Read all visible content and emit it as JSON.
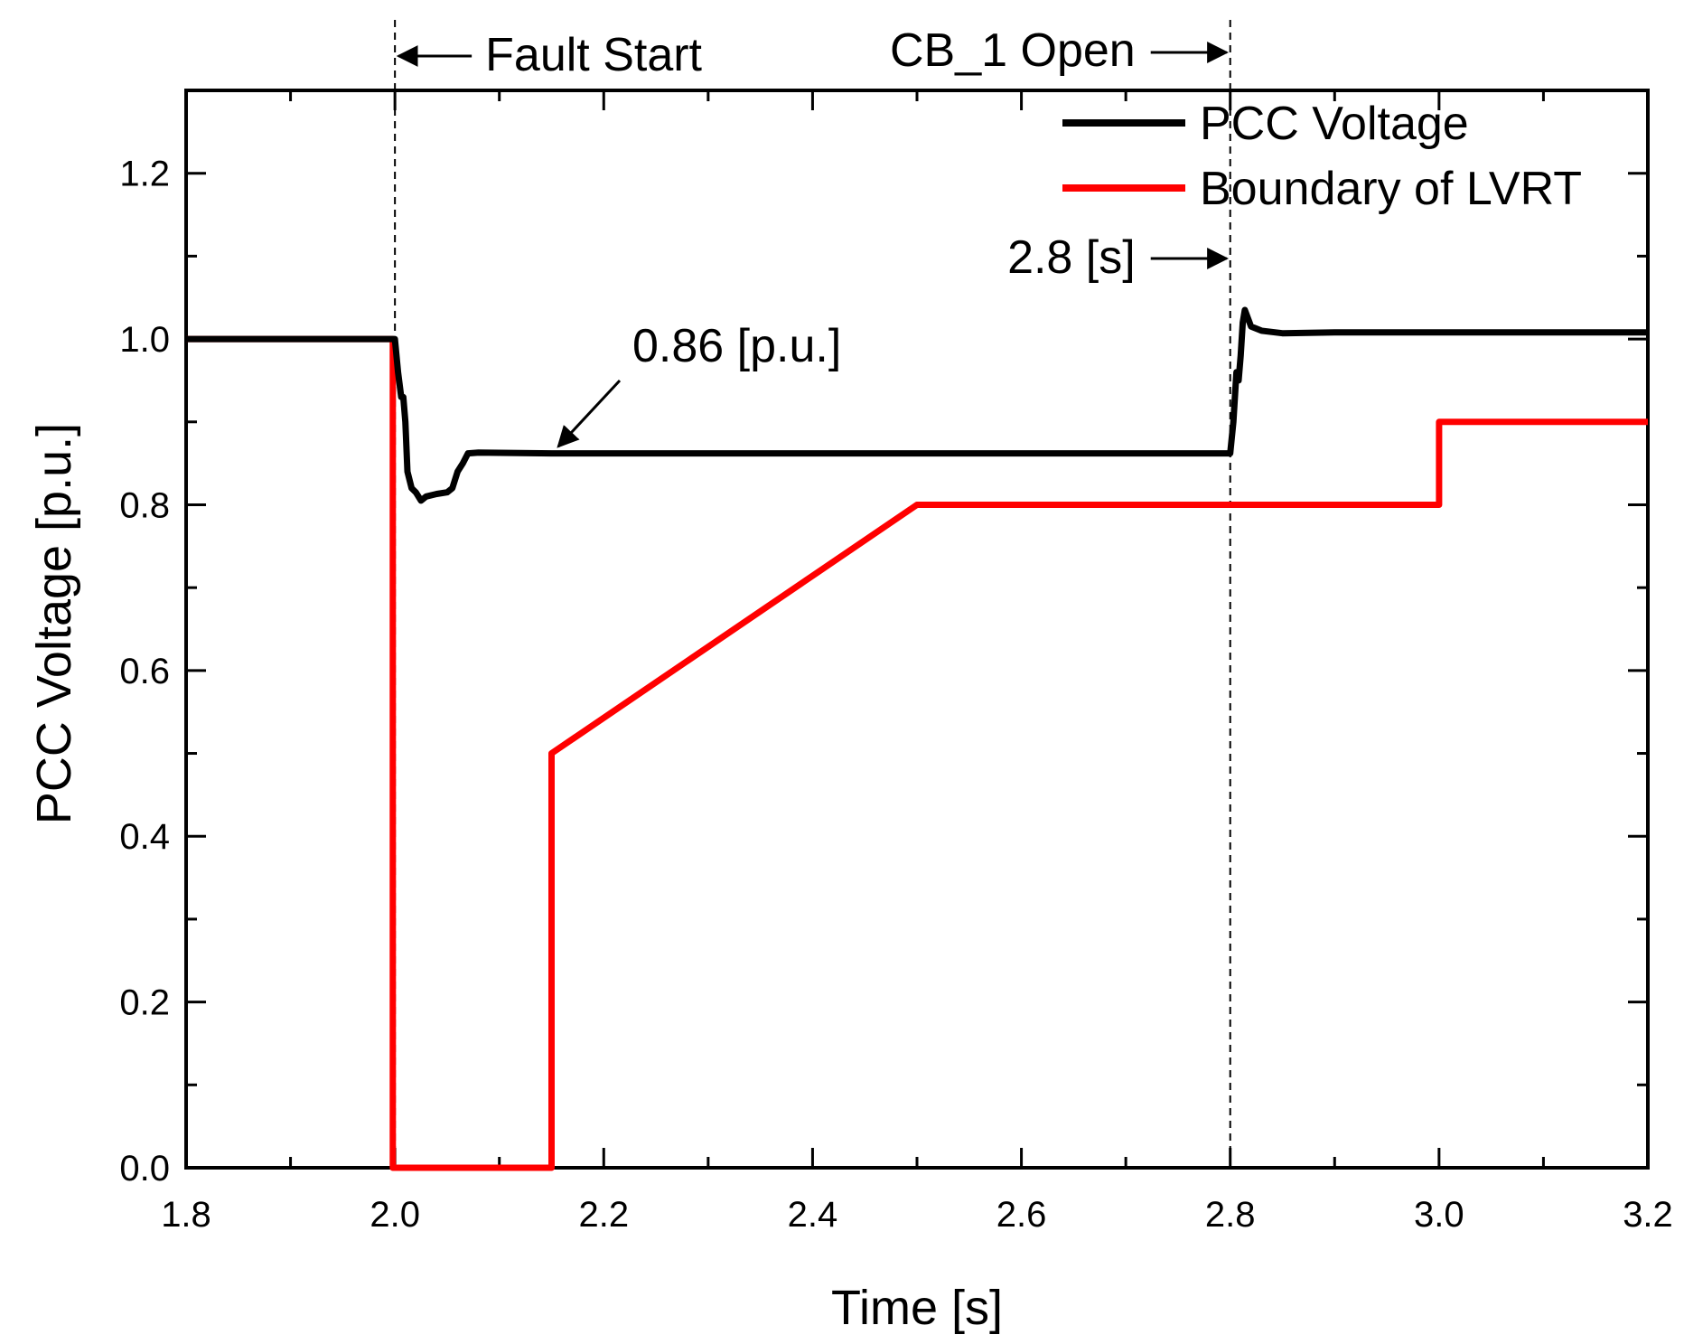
{
  "chart_data": {
    "type": "line",
    "title": "",
    "xlabel": "Time [s]",
    "ylabel": "PCC Voltage [p.u.]",
    "xlim": [
      1.8,
      3.2
    ],
    "ylim": [
      0.0,
      1.3
    ],
    "xticks": [
      1.8,
      2.0,
      2.2,
      2.4,
      2.6,
      2.8,
      3.0,
      3.2
    ],
    "xtick_labels": [
      "1.8",
      "2.0",
      "2.2",
      "2.4",
      "2.6",
      "2.8",
      "3.0",
      "3.2"
    ],
    "yticks": [
      0.0,
      0.2,
      0.4,
      0.6,
      0.8,
      1.0,
      1.2
    ],
    "ytick_labels": [
      "0.0",
      "0.2",
      "0.4",
      "0.6",
      "0.8",
      "1.0",
      "1.2"
    ],
    "grid": false,
    "legend_position": "top-right",
    "series": [
      {
        "name": "PCC Voltage",
        "color": "#000000",
        "x": [
          1.8,
          2.0,
          2.003,
          2.006,
          2.008,
          2.01,
          2.012,
          2.016,
          2.02,
          2.025,
          2.03,
          2.04,
          2.05,
          2.055,
          2.06,
          2.065,
          2.07,
          2.08,
          2.15,
          2.3,
          2.6,
          2.8,
          2.803,
          2.806,
          2.808,
          2.81,
          2.812,
          2.814,
          2.82,
          2.83,
          2.85,
          2.9,
          3.2
        ],
        "y": [
          1.0,
          1.0,
          0.96,
          0.93,
          0.93,
          0.9,
          0.84,
          0.82,
          0.815,
          0.805,
          0.81,
          0.813,
          0.815,
          0.82,
          0.84,
          0.85,
          0.862,
          0.863,
          0.862,
          0.862,
          0.862,
          0.862,
          0.9,
          0.96,
          0.95,
          0.98,
          1.02,
          1.035,
          1.015,
          1.01,
          1.007,
          1.008,
          1.008
        ]
      },
      {
        "name": "Boundary of LVRT",
        "color": "#ff0000",
        "x": [
          1.8,
          1.998,
          1.998,
          2.15,
          2.15,
          2.5,
          3.0,
          3.0,
          3.2
        ],
        "y": [
          1.0,
          1.0,
          0.0,
          0.0,
          0.5,
          0.8,
          0.8,
          0.9,
          0.9
        ]
      }
    ],
    "vlines": [
      {
        "x": 2.0,
        "style": "dashed"
      },
      {
        "x": 2.8,
        "style": "dashed"
      }
    ],
    "annotations": [
      {
        "text": "Fault Start",
        "x": 2.0,
        "arrow": "left"
      },
      {
        "text": "CB_1 Open",
        "x": 2.8,
        "arrow": "right"
      },
      {
        "text": "2.8 [s]",
        "x": 2.8,
        "y": 1.1,
        "arrow": "right"
      },
      {
        "text": "0.86 [p.u.]",
        "x": 2.15,
        "y": 0.862,
        "arrow": "diagonal"
      }
    ]
  }
}
